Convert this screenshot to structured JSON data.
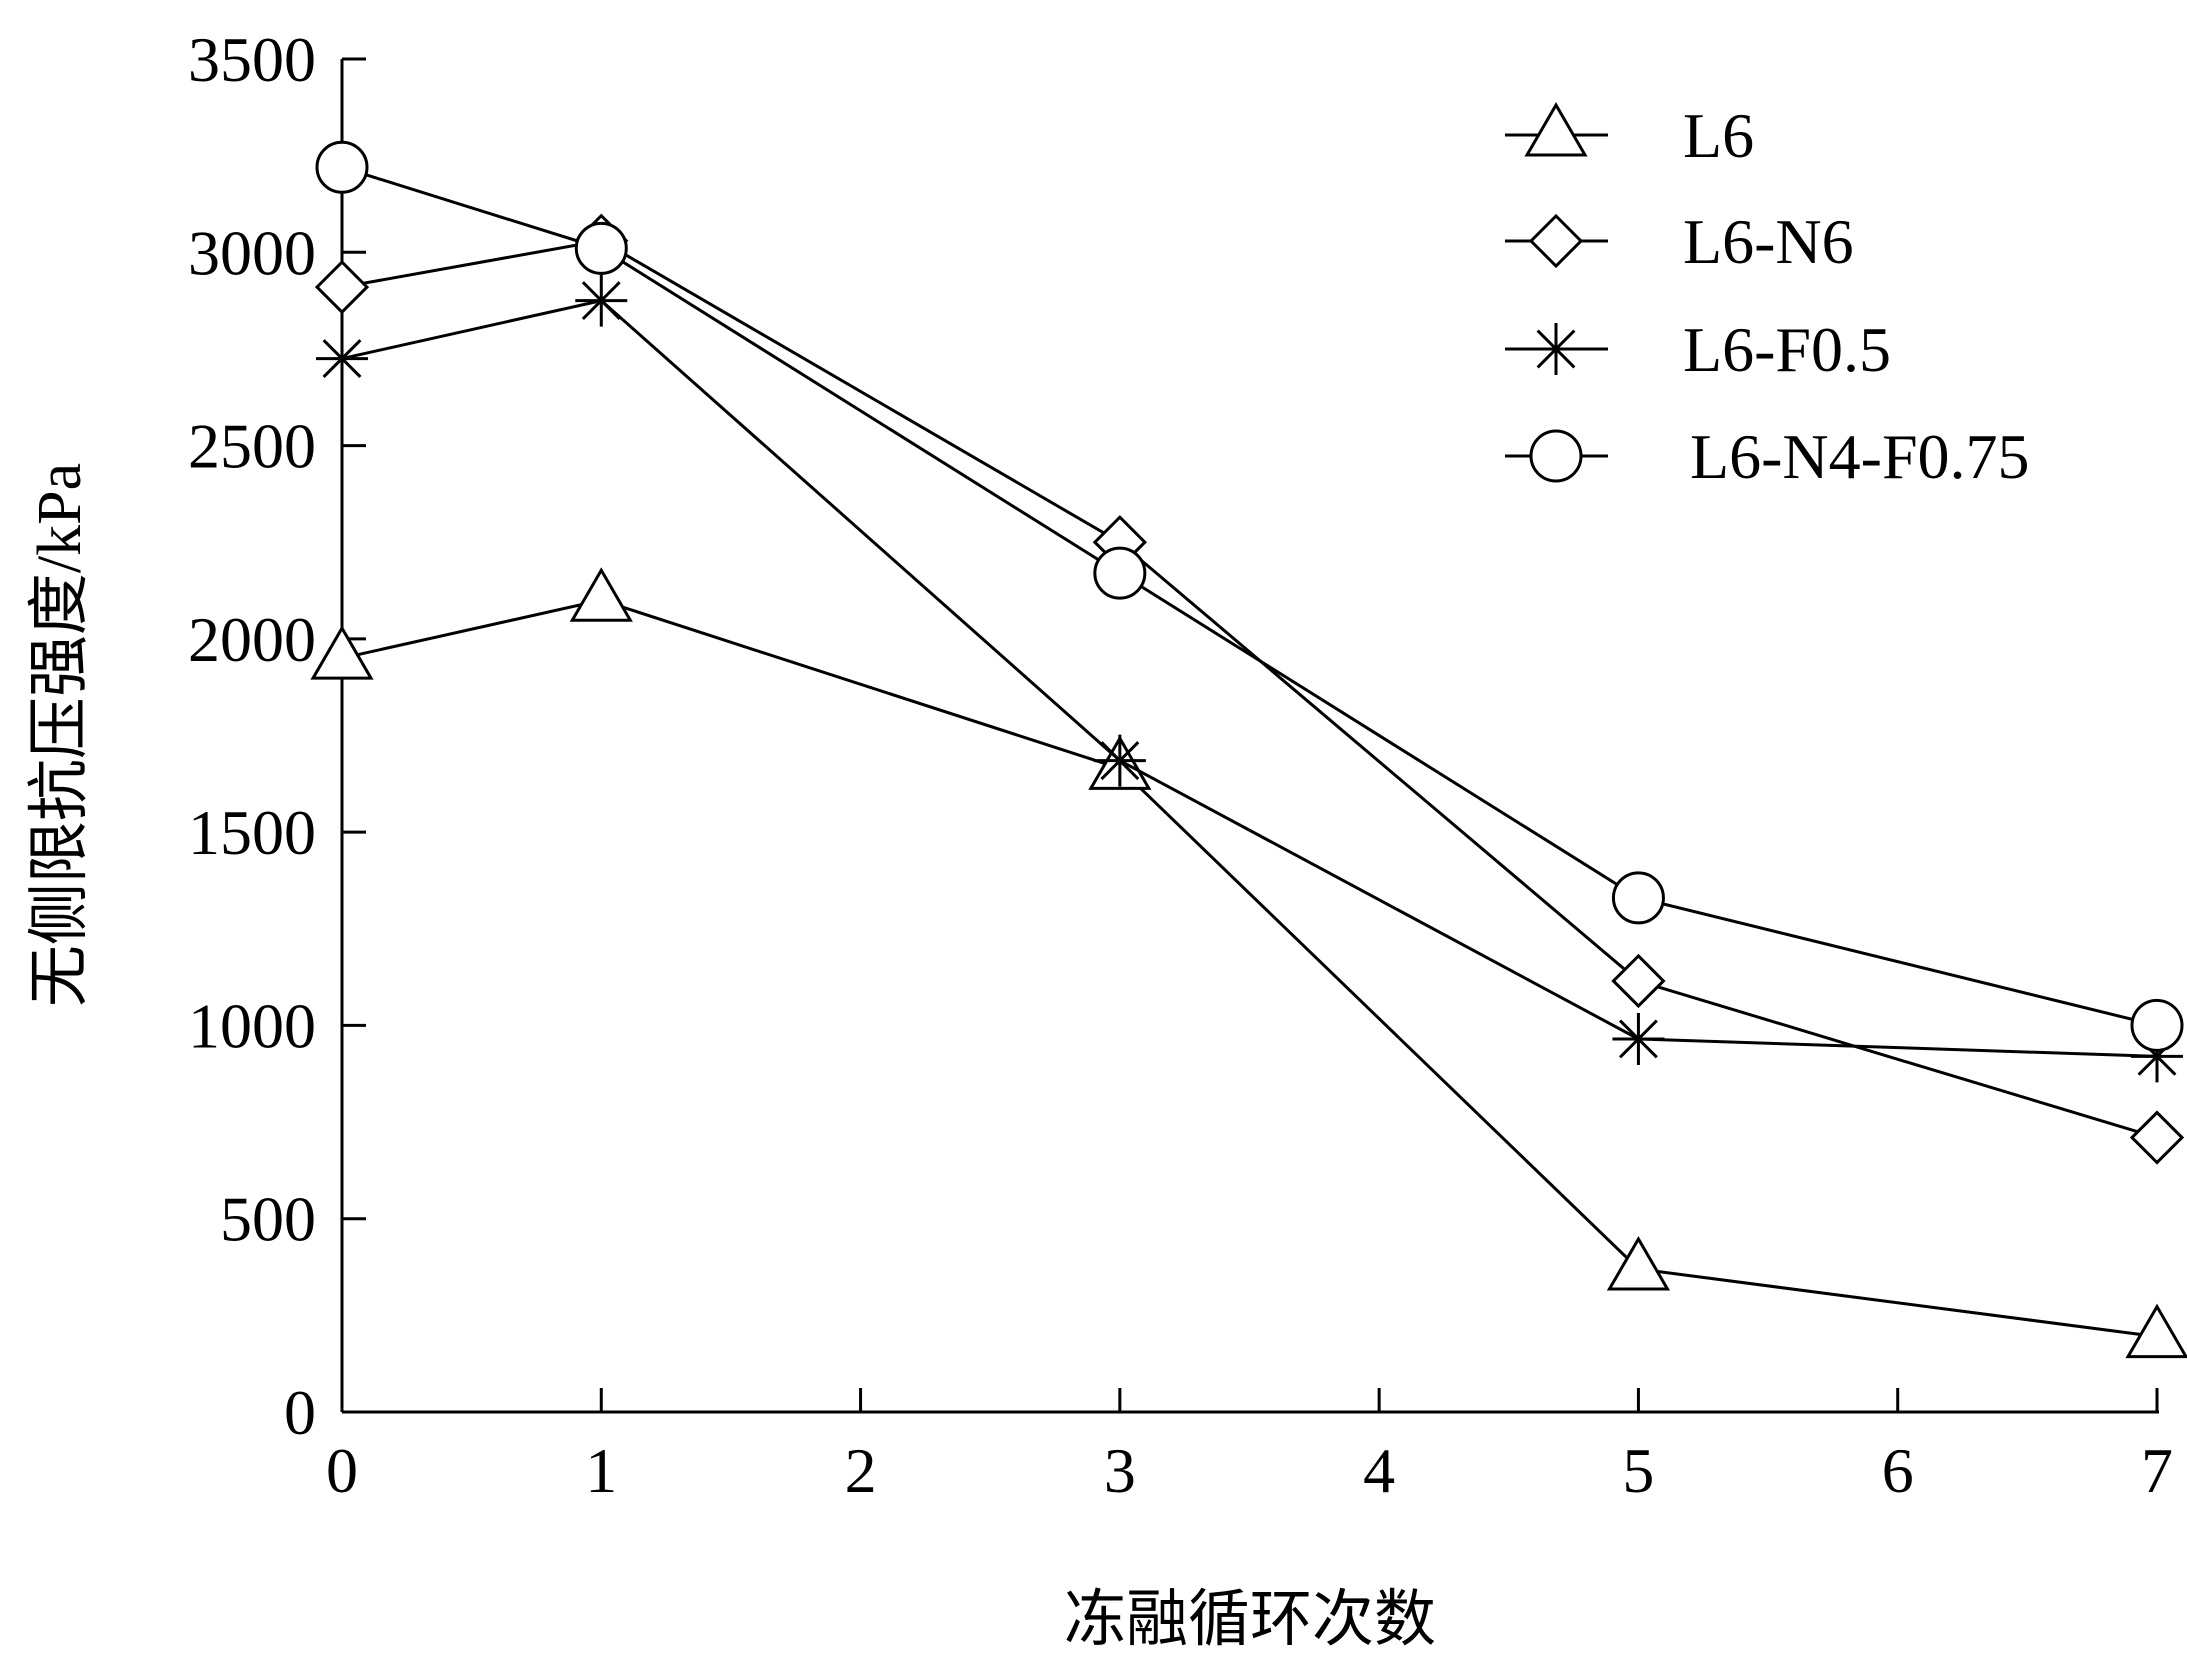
{
  "chart_data": {
    "type": "line",
    "title": "",
    "xlabel": "冻融循环次数",
    "ylabel": "无侧限抗压强度/kPa",
    "xlim": [
      0,
      7
    ],
    "ylim": [
      0,
      3500
    ],
    "xticks": [
      0,
      1,
      2,
      3,
      4,
      5,
      6,
      7
    ],
    "yticks": [
      0,
      500,
      1000,
      1500,
      2000,
      2500,
      3000,
      3500
    ],
    "grid": false,
    "legend_position": "top-right",
    "x": [
      0,
      1,
      3,
      5,
      7
    ],
    "series": [
      {
        "name": "L6",
        "marker": "triangle",
        "values": [
          1950,
          2100,
          1665,
          370,
          195
        ]
      },
      {
        "name": "L6-N6",
        "marker": "diamond",
        "values": [
          2910,
          3030,
          2250,
          1115,
          710
        ]
      },
      {
        "name": "L6-F0.5",
        "marker": "asterisk",
        "values": [
          2725,
          2875,
          1685,
          965,
          920
        ]
      },
      {
        "name": "L6-N4-F0.75",
        "marker": "circle",
        "values": [
          3220,
          3010,
          2170,
          1330,
          1000
        ]
      }
    ],
    "colors": {
      "line": "#000000",
      "background": "#ffffff"
    }
  }
}
